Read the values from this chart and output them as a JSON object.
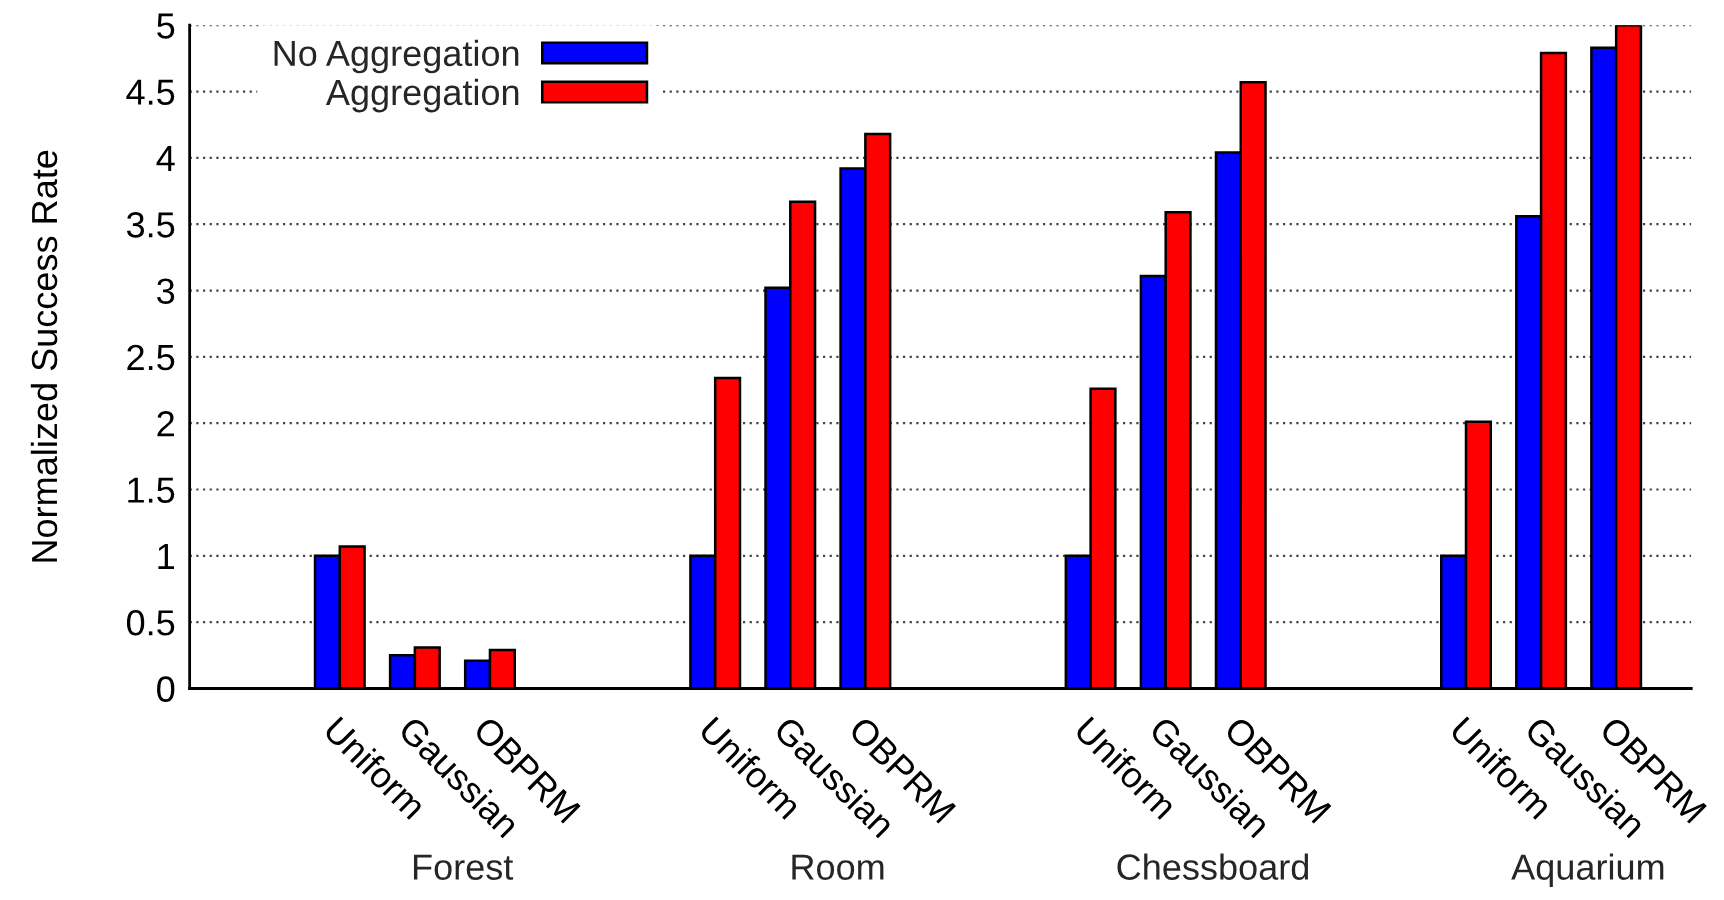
{
  "chart_data": {
    "type": "bar",
    "ylabel": "Normalized Success Rate",
    "categories": [
      null,
      "Uniform",
      "Gaussian",
      "OBPRM",
      null,
      null,
      "Uniform",
      "Gaussian",
      "OBPRM",
      null,
      null,
      "Uniform",
      "Gaussian",
      "OBPRM",
      null,
      null,
      "Uniform",
      "Gaussian",
      "OBPRM"
    ],
    "series": [
      {
        "name": "No Aggregation",
        "color": "#0000ff",
        "values": [
          null,
          1,
          0.25,
          0.21,
          null,
          null,
          1,
          3.02,
          3.92,
          null,
          null,
          1,
          3.11,
          4.04,
          null,
          null,
          1,
          3.56,
          4.83
        ]
      },
      {
        "name": "Aggregation",
        "color": "#ff0000",
        "values": [
          null,
          1.07,
          0.31,
          0.29,
          null,
          null,
          2.34,
          3.67,
          4.18,
          null,
          null,
          2.26,
          3.59,
          4.57,
          null,
          null,
          2.01,
          4.79,
          5
        ]
      }
    ],
    "annotations": [
      "Forest",
      "Room",
      "Chessboard",
      "Aquarium"
    ],
    "ylim": [
      0,
      5
    ],
    "yticks": [
      0,
      0.5,
      1,
      1.5,
      2,
      2.5,
      3,
      3.5,
      4,
      4.5,
      5
    ],
    "grid": "y",
    "legend": "top left"
  }
}
